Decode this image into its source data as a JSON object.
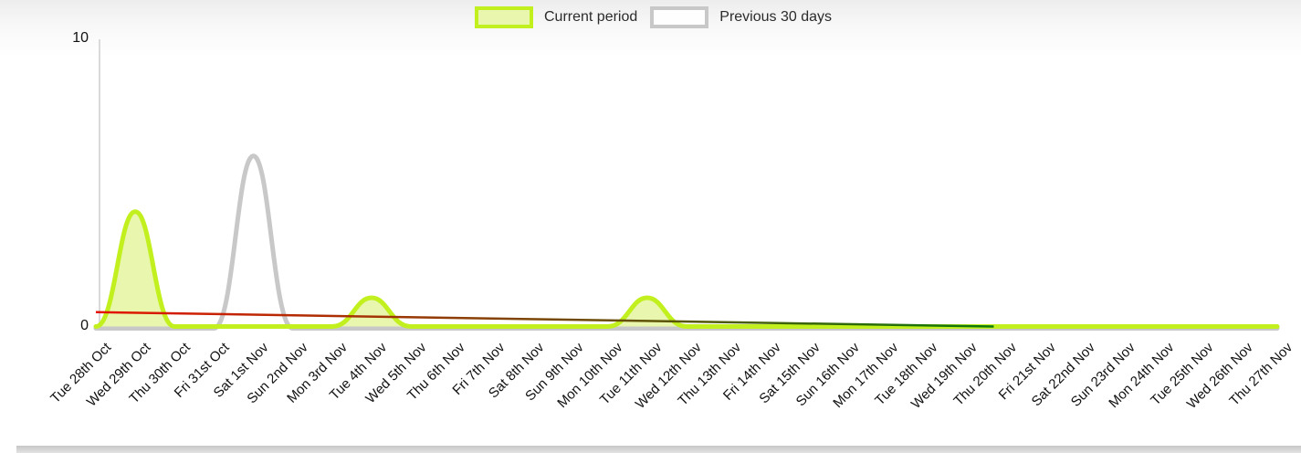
{
  "legend": {
    "items": [
      {
        "label": "Current period",
        "swatch_fill": "#e9f6ad",
        "swatch_border": "#c2f01e"
      },
      {
        "label": "Previous 30 days",
        "swatch_fill": "#fefefe",
        "swatch_border": "#c8c8c8"
      }
    ]
  },
  "chart_data": {
    "type": "area",
    "title": "",
    "xlabel": "",
    "ylabel": "",
    "ylim": [
      0,
      10
    ],
    "yticks": [
      0,
      10
    ],
    "grid": false,
    "legend_position": "top-center",
    "categories": [
      "Tue 28th Oct",
      "Wed 29th Oct",
      "Thu 30th Oct",
      "Fri 31st Oct",
      "Sat 1st Nov",
      "Sun 2nd Nov",
      "Mon 3rd Nov",
      "Tue 4th Nov",
      "Wed 5th Nov",
      "Thu 6th Nov",
      "Fri 7th Nov",
      "Sat 8th Nov",
      "Sun 9th Nov",
      "Mon 10th Nov",
      "Tue 11th Nov",
      "Wed 12th Nov",
      "Thu 13th Nov",
      "Fri 14th Nov",
      "Sat 15th Nov",
      "Sun 16th Nov",
      "Mon 17th Nov",
      "Tue 18th Nov",
      "Wed 19th Nov",
      "Thu 20th Nov",
      "Fri 21st Nov",
      "Sat 22nd Nov",
      "Sun 23rd Nov",
      "Mon 24th Nov",
      "Tue 25th Nov",
      "Wed 26th Nov",
      "Thu 27th Nov"
    ],
    "series": [
      {
        "name": "Previous 30 days",
        "color": "#c8c8c8",
        "fill_color": null,
        "values": [
          0,
          0,
          0,
          0,
          6,
          0,
          0,
          0,
          0,
          0,
          0,
          0,
          0,
          0,
          0,
          0,
          0,
          0,
          0,
          0,
          0,
          0,
          0,
          0,
          0,
          0,
          0,
          0,
          0,
          0,
          0
        ]
      },
      {
        "name": "Current period",
        "color": "#c2f01e",
        "fill_color": "#e9f6ad",
        "values": [
          0,
          4,
          0,
          0,
          0,
          0,
          0,
          1,
          0,
          0,
          0,
          0,
          0,
          0,
          1,
          0,
          0,
          0,
          0,
          0,
          0,
          0,
          0,
          0,
          0,
          0,
          0,
          0,
          0,
          0,
          0
        ]
      }
    ],
    "trend_line": {
      "start_index": 0,
      "start_value": 0.5,
      "end_index": 22.8,
      "end_value": 0,
      "color_start": "#e51400",
      "color_end": "#0c7a0c"
    }
  }
}
